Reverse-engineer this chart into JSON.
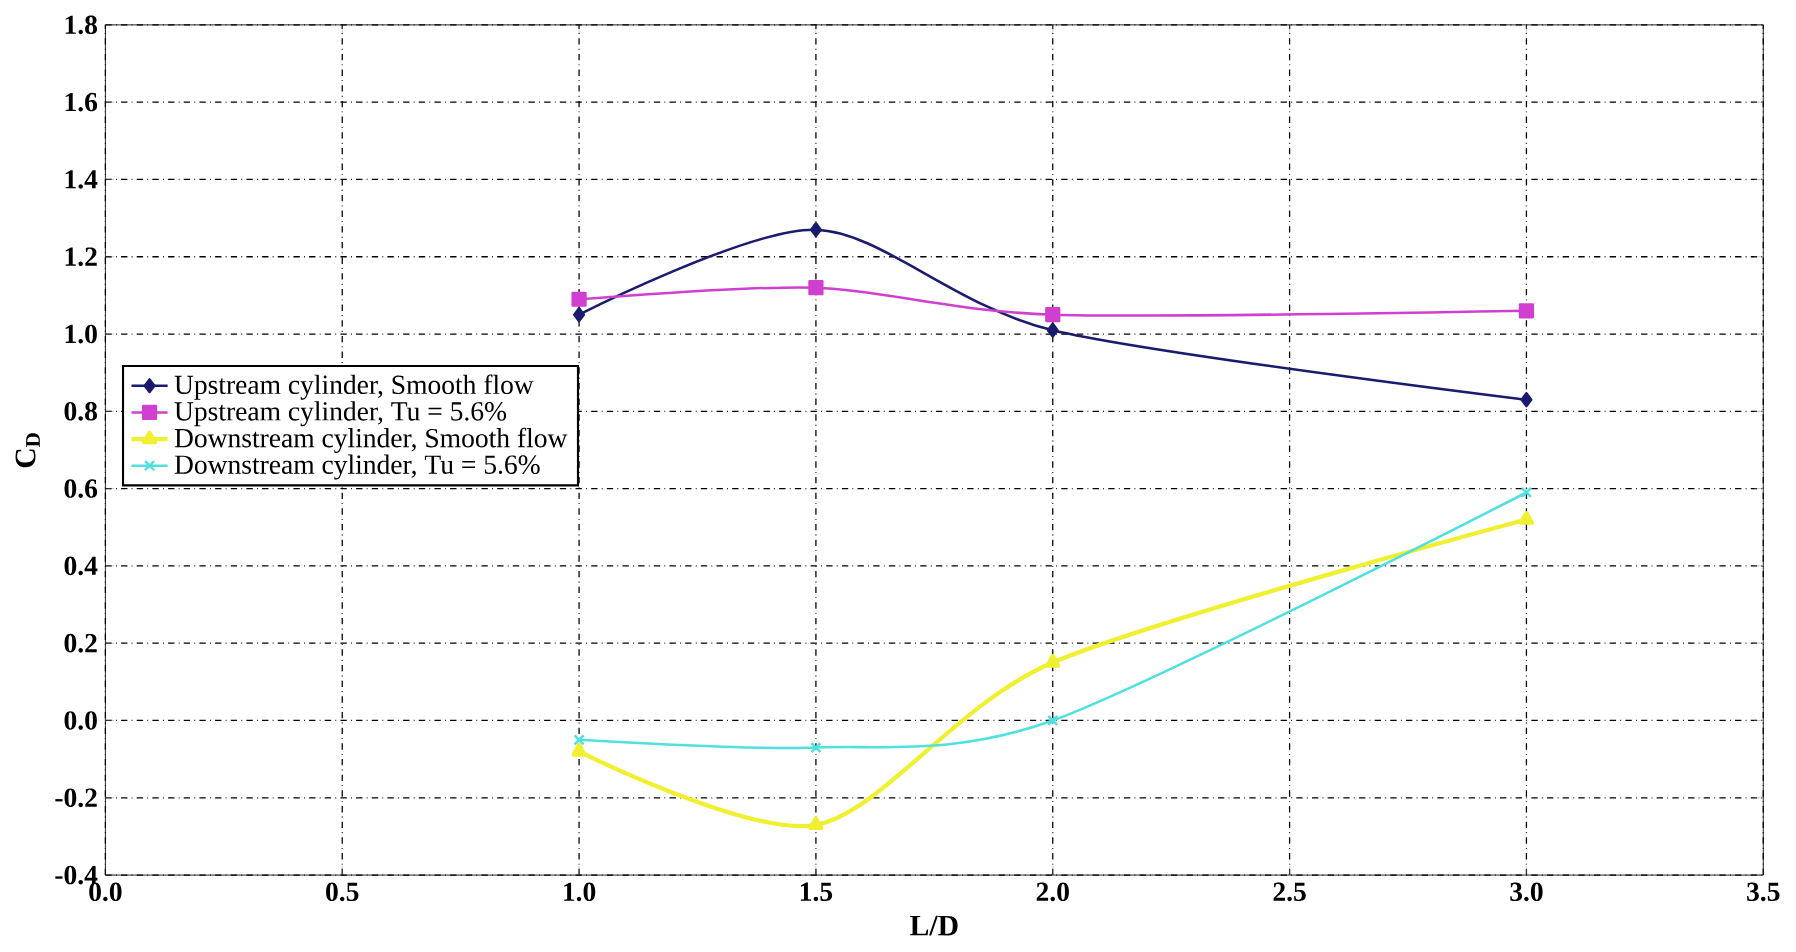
{
  "chart_data": {
    "type": "line",
    "xlabel": "L/D",
    "ylabel": "C$_{D}$",
    "x": [
      1.0,
      1.5,
      2.0,
      3.0
    ],
    "series": [
      {
        "name": "Upstream cylinder, Smooth flow",
        "color": "#1a1a6e",
        "marker": "diamond",
        "values": [
          1.05,
          1.27,
          1.01,
          0.83
        ]
      },
      {
        "name": "Upstream cylinder, Tu = 5.6%",
        "color": "#d040d0",
        "marker": "square",
        "values": [
          1.09,
          1.12,
          1.05,
          1.06
        ]
      },
      {
        "name": "Downstream cylinder, Smooth flow",
        "color": "#f0f030",
        "marker": "triangle",
        "values": [
          -0.08,
          -0.27,
          0.15,
          0.52
        ]
      },
      {
        "name": "Downstream cylinder, Tu = 5.6%",
        "color": "#50e0e0",
        "marker": "cross",
        "values": [
          -0.05,
          -0.07,
          0.0,
          0.59
        ]
      }
    ],
    "xlim": [
      0.0,
      3.5
    ],
    "xticks": [
      {
        "value": 0,
        "label": "0.0"
      },
      0.5,
      {
        "value": 1,
        "label": "1.0"
      },
      1.5,
      {
        "value": 2,
        "label": "2.0"
      },
      2.5,
      {
        "value": 3,
        "label": "3.0"
      },
      3.5
    ],
    "ylim": [
      -0.4,
      1.8
    ],
    "yticks": [
      -0.4,
      -0.2,
      {
        "value": 0,
        "label": "0.0"
      },
      0.2,
      0.4,
      0.6,
      0.8,
      {
        "value": 1,
        "label": "1.0"
      },
      1.2,
      1.4,
      1.6,
      1.8
    ],
    "grid": true,
    "legend": "left"
  }
}
